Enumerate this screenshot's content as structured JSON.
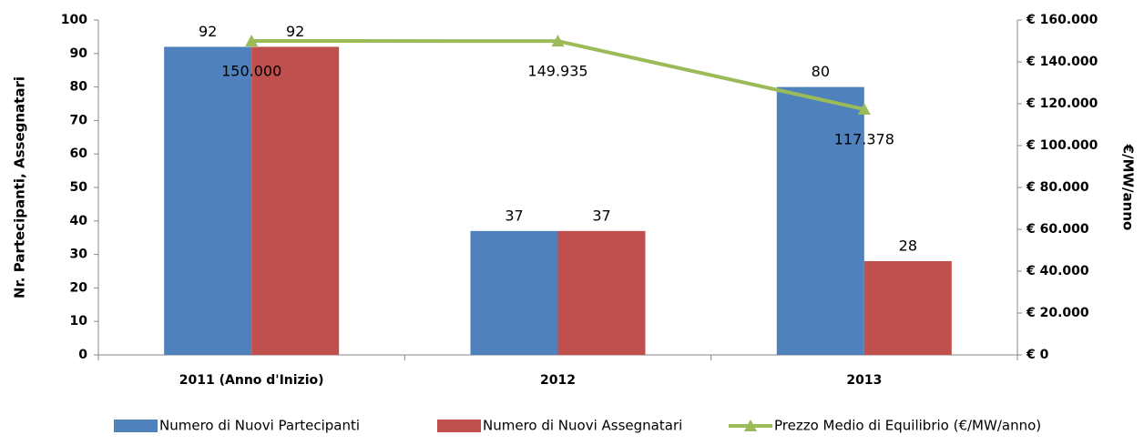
{
  "chart_data": {
    "type": "bar",
    "categories": [
      "2011 (Anno d'Inizio)",
      "2012",
      "2013"
    ],
    "y_label": "Nr. Partecipanti, Assegnatari",
    "y2_label": "€/MW/anno",
    "ylim": [
      0,
      100
    ],
    "yticks": [
      0,
      10,
      20,
      30,
      40,
      50,
      60,
      70,
      80,
      90,
      100
    ],
    "y2lim": [
      0,
      160000
    ],
    "y2ticks": [
      {
        "value": 0,
        "label": "€ 0"
      },
      {
        "value": 20000,
        "label": "€ 20.000"
      },
      {
        "value": 40000,
        "label": "€ 40.000"
      },
      {
        "value": 60000,
        "label": "€ 60.000"
      },
      {
        "value": 80000,
        "label": "€ 80.000"
      },
      {
        "value": 100000,
        "label": "€ 100.000"
      },
      {
        "value": 120000,
        "label": "€ 120.000"
      },
      {
        "value": 140000,
        "label": "€ 140.000"
      },
      {
        "value": 160000,
        "label": "€ 160.000"
      }
    ],
    "grid": false,
    "legend": "bottom",
    "series": [
      {
        "name": "Numero di Nuovi Partecipanti",
        "color": "#4f81bd",
        "values": [
          92,
          37,
          80
        ]
      },
      {
        "name": "Numero di Nuovi Assegnatari",
        "color": "#c0504d",
        "values": [
          92,
          37,
          28
        ]
      },
      {
        "name": "Prezzo Medio di Equilibrio (€/MW/anno)",
        "color": "#9bbb59",
        "axis": "y2",
        "kind": "line",
        "values": [
          150000,
          149935,
          117378
        ],
        "value_labels": [
          "150.000",
          "149.935",
          "117.378"
        ]
      }
    ]
  }
}
